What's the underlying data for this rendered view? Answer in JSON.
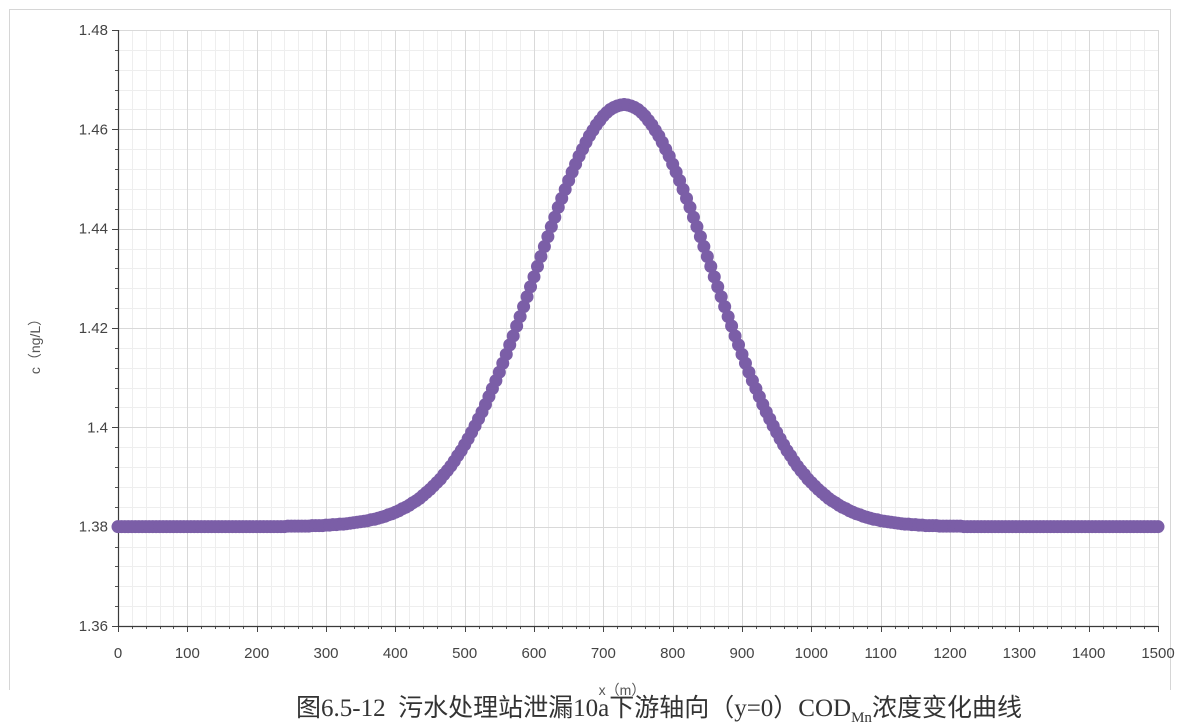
{
  "figure": {
    "caption_main": "图6.5-12  污水处理站泄漏10a下游轴向（y=0）COD",
    "caption_subscript": "Mn",
    "caption_end": "浓度变化曲线"
  },
  "chart_data": {
    "type": "scatter",
    "xlabel": "x（m）",
    "ylabel": "c（ng/L）",
    "xlim": [
      0,
      1500
    ],
    "ylim": [
      1.36,
      1.48
    ],
    "x_ticks": [
      0,
      100,
      200,
      300,
      400,
      500,
      600,
      700,
      800,
      900,
      1000,
      1100,
      1200,
      1300,
      1400,
      1500
    ],
    "x_tick_labels": [
      "0",
      "100",
      "200",
      "300",
      "400",
      "500",
      "600",
      "700",
      "800",
      "900",
      "1000",
      "1100",
      "1200",
      "1300",
      "1400",
      "1500"
    ],
    "y_ticks": [
      1.36,
      1.38,
      1.4,
      1.42,
      1.44,
      1.46,
      1.48
    ],
    "y_tick_labels": [
      "1.36",
      "1.38",
      "1.4",
      "1.42",
      "1.44",
      "1.46",
      "1.48"
    ],
    "grid": true,
    "legend": "none",
    "series": [
      {
        "color": "#7b5ea7",
        "marker": "circle",
        "x": [
          0,
          5,
          10,
          15,
          20,
          25,
          30,
          35,
          40,
          45,
          50,
          55,
          60,
          65,
          70,
          75,
          80,
          85,
          90,
          95,
          100,
          105,
          110,
          115,
          120,
          125,
          130,
          135,
          140,
          145,
          150,
          155,
          160,
          165,
          170,
          175,
          180,
          185,
          190,
          195,
          200,
          205,
          210,
          215,
          220,
          225,
          230,
          235,
          240,
          245,
          250,
          255,
          260,
          265,
          270,
          275,
          280,
          285,
          290,
          295,
          300,
          305,
          310,
          315,
          320,
          325,
          330,
          335,
          340,
          345,
          350,
          355,
          360,
          365,
          370,
          375,
          380,
          385,
          390,
          395,
          400,
          405,
          410,
          415,
          420,
          425,
          430,
          435,
          440,
          445,
          450,
          455,
          460,
          465,
          470,
          475,
          480,
          485,
          490,
          495,
          500,
          505,
          510,
          515,
          520,
          525,
          530,
          535,
          540,
          545,
          550,
          555,
          560,
          565,
          570,
          575,
          580,
          585,
          590,
          595,
          600,
          605,
          610,
          615,
          620,
          625,
          630,
          635,
          640,
          645,
          650,
          655,
          660,
          665,
          670,
          675,
          680,
          685,
          690,
          695,
          700,
          705,
          710,
          715,
          720,
          725,
          730,
          735,
          740,
          745,
          750,
          755,
          760,
          765,
          770,
          775,
          780,
          785,
          790,
          795,
          800,
          805,
          810,
          815,
          820,
          825,
          830,
          835,
          840,
          845,
          850,
          855,
          860,
          865,
          870,
          875,
          880,
          885,
          890,
          895,
          900,
          905,
          910,
          915,
          920,
          925,
          930,
          935,
          940,
          945,
          950,
          955,
          960,
          965,
          970,
          975,
          980,
          985,
          990,
          995,
          1000,
          1005,
          1010,
          1015,
          1020,
          1025,
          1030,
          1035,
          1040,
          1045,
          1050,
          1055,
          1060,
          1065,
          1070,
          1075,
          1080,
          1085,
          1090,
          1095,
          1100,
          1105,
          1110,
          1115,
          1120,
          1125,
          1130,
          1135,
          1140,
          1145,
          1150,
          1155,
          1160,
          1165,
          1170,
          1175,
          1180,
          1185,
          1190,
          1195,
          1200,
          1205,
          1210,
          1215,
          1220,
          1225,
          1230,
          1235,
          1240,
          1245,
          1250,
          1255,
          1260,
          1265,
          1270,
          1275,
          1280,
          1285,
          1290,
          1295,
          1300,
          1305,
          1310,
          1315,
          1320,
          1325,
          1330,
          1335,
          1340,
          1345,
          1350,
          1355,
          1360,
          1365,
          1370,
          1375,
          1380,
          1385,
          1390,
          1395,
          1400,
          1405,
          1410,
          1415,
          1420,
          1425,
          1430,
          1435,
          1440,
          1445,
          1450,
          1455,
          1460,
          1465,
          1470,
          1475,
          1480,
          1485,
          1490,
          1495,
          1500
        ],
        "y": [
          1.38,
          1.38,
          1.38,
          1.38,
          1.38,
          1.38,
          1.38,
          1.38,
          1.38,
          1.38,
          1.38,
          1.38,
          1.38,
          1.38,
          1.38,
          1.38,
          1.38,
          1.38,
          1.38,
          1.38,
          1.38,
          1.38,
          1.38,
          1.38,
          1.38,
          1.38,
          1.38,
          1.38,
          1.38,
          1.38,
          1.38,
          1.38,
          1.38,
          1.38,
          1.38,
          1.38,
          1.38,
          1.38,
          1.38,
          1.38,
          1.38,
          1.38,
          1.38,
          1.38,
          1.38,
          1.38,
          1.38,
          1.38,
          1.38,
          1.3801,
          1.3801,
          1.3801,
          1.3801,
          1.3801,
          1.3801,
          1.3801,
          1.3802,
          1.3802,
          1.3802,
          1.3802,
          1.3803,
          1.3803,
          1.3804,
          1.3804,
          1.3805,
          1.3805,
          1.3806,
          1.3807,
          1.3808,
          1.3809,
          1.381,
          1.3811,
          1.3812,
          1.3814,
          1.3815,
          1.3817,
          1.3819,
          1.3821,
          1.3824,
          1.3826,
          1.3829,
          1.3832,
          1.3836,
          1.3839,
          1.3843,
          1.3848,
          1.3852,
          1.3857,
          1.3863,
          1.3869,
          1.3875,
          1.3882,
          1.3889,
          1.3896,
          1.3905,
          1.3913,
          1.3922,
          1.3932,
          1.3943,
          1.3953,
          1.3965,
          1.3977,
          1.399,
          1.4003,
          1.4017,
          1.4031,
          1.4046,
          1.4062,
          1.4078,
          1.4094,
          1.4111,
          1.4129,
          1.4147,
          1.4166,
          1.4184,
          1.4204,
          1.4223,
          1.4243,
          1.4263,
          1.4283,
          1.4303,
          1.4324,
          1.4344,
          1.4364,
          1.4384,
          1.4404,
          1.4423,
          1.4443,
          1.4461,
          1.4479,
          1.4497,
          1.4514,
          1.453,
          1.4546,
          1.456,
          1.4574,
          1.4587,
          1.4598,
          1.4609,
          1.4618,
          1.4627,
          1.4634,
          1.464,
          1.4644,
          1.4647,
          1.4649,
          1.465,
          1.4649,
          1.4647,
          1.4644,
          1.464,
          1.4634,
          1.4627,
          1.4618,
          1.4609,
          1.4598,
          1.4587,
          1.4574,
          1.456,
          1.4546,
          1.453,
          1.4514,
          1.4497,
          1.4479,
          1.4461,
          1.4443,
          1.4423,
          1.4404,
          1.4384,
          1.4364,
          1.4344,
          1.4324,
          1.4303,
          1.4283,
          1.4263,
          1.4243,
          1.4223,
          1.4204,
          1.4184,
          1.4166,
          1.4147,
          1.4129,
          1.4111,
          1.4094,
          1.4078,
          1.4062,
          1.4046,
          1.4031,
          1.4017,
          1.4003,
          1.399,
          1.3977,
          1.3965,
          1.3953,
          1.3943,
          1.3932,
          1.3922,
          1.3913,
          1.3905,
          1.3896,
          1.3889,
          1.3882,
          1.3875,
          1.3869,
          1.3863,
          1.3857,
          1.3852,
          1.3848,
          1.3843,
          1.3839,
          1.3836,
          1.3832,
          1.3829,
          1.3826,
          1.3824,
          1.3821,
          1.3819,
          1.3817,
          1.3815,
          1.3814,
          1.3812,
          1.3811,
          1.381,
          1.3809,
          1.3808,
          1.3807,
          1.3806,
          1.3805,
          1.3805,
          1.3804,
          1.3804,
          1.3803,
          1.3803,
          1.3802,
          1.3802,
          1.3802,
          1.3802,
          1.3801,
          1.3801,
          1.3801,
          1.3801,
          1.3801,
          1.3801,
          1.3801,
          1.38,
          1.38,
          1.38,
          1.38,
          1.38,
          1.38,
          1.38,
          1.38,
          1.38,
          1.38,
          1.38,
          1.38,
          1.38,
          1.38,
          1.38,
          1.38,
          1.38,
          1.38,
          1.38,
          1.38,
          1.38,
          1.38,
          1.38,
          1.38,
          1.38,
          1.38,
          1.38,
          1.38,
          1.38,
          1.38,
          1.38,
          1.38,
          1.38,
          1.38,
          1.38,
          1.38,
          1.38,
          1.38,
          1.38,
          1.38,
          1.38,
          1.38,
          1.38,
          1.38,
          1.38,
          1.38,
          1.38,
          1.38,
          1.38,
          1.38,
          1.38,
          1.38,
          1.38,
          1.38,
          1.38,
          1.38,
          1.38
        ]
      }
    ]
  }
}
